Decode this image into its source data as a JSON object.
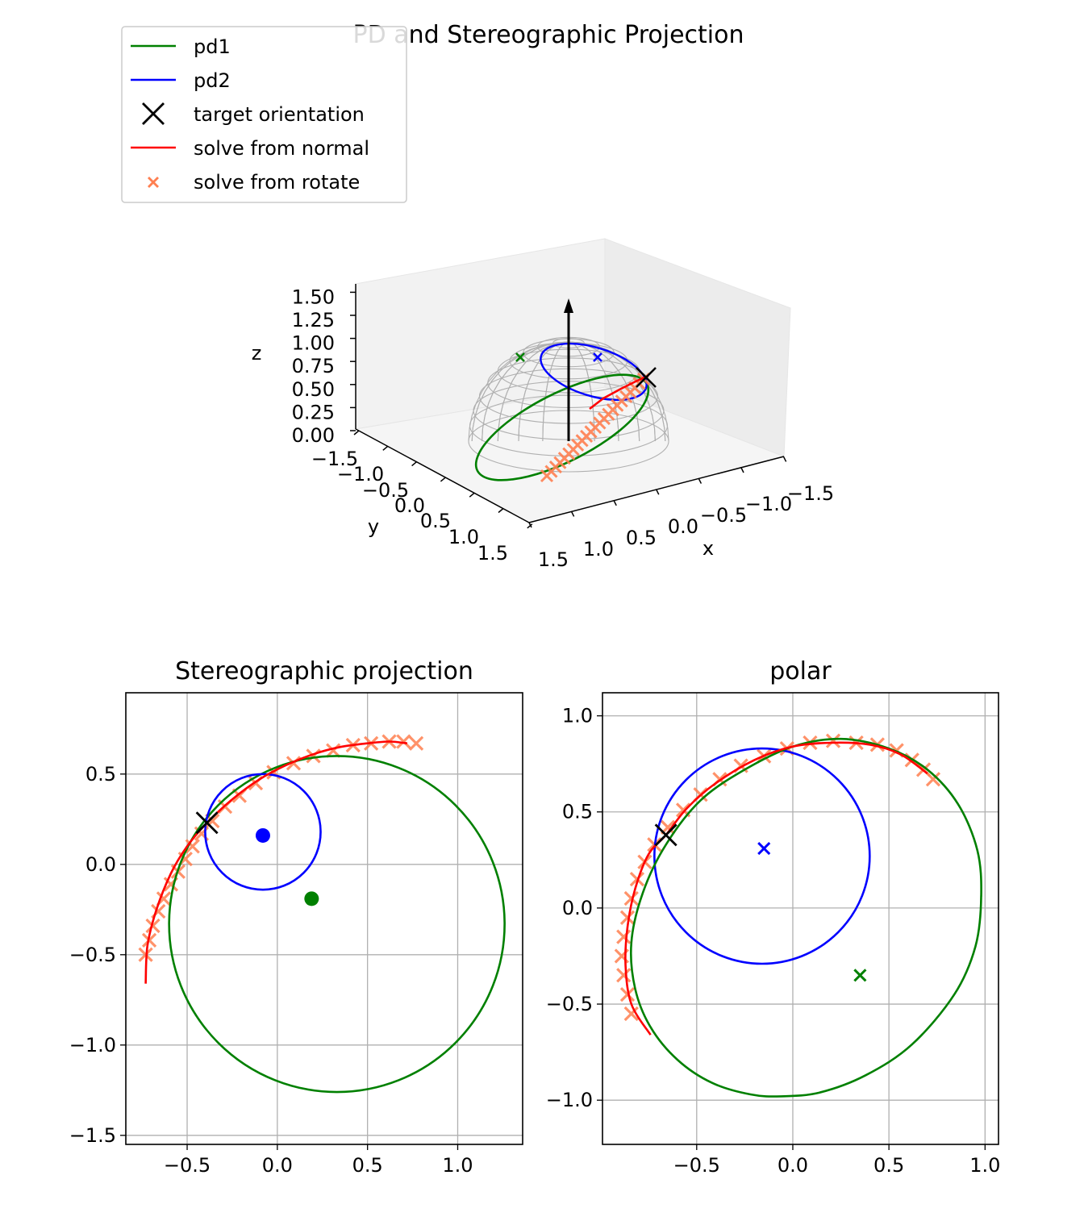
{
  "figure": {
    "title": "PD and Stereographic Projection"
  },
  "legend": {
    "location": "upper-left",
    "entries": [
      {
        "label": "pd1",
        "marker": "line",
        "color": "#008000"
      },
      {
        "label": "pd2",
        "marker": "line",
        "color": "#0000ff"
      },
      {
        "label": "target orientation",
        "marker": "x",
        "color": "#000000"
      },
      {
        "label": "solve from normal",
        "marker": "line",
        "color": "#ff0000"
      },
      {
        "label": "solve from rotate",
        "marker": "x",
        "color": "#ff7f50"
      }
    ]
  },
  "colors": {
    "pd1": "#008000",
    "pd2": "#0000ff",
    "target": "#000000",
    "normal": "#ff0000",
    "rotate": "#ff7f50"
  },
  "chart_data": [
    {
      "type": "line",
      "subtype": "3d",
      "title": "",
      "xlabel": "x",
      "ylabel": "y",
      "zlabel": "z",
      "xlim": [
        -1.5,
        1.5
      ],
      "ylim": [
        -1.5,
        1.5
      ],
      "zlim": [
        0.0,
        1.5
      ],
      "xticks": [
        "1.5",
        "1.0",
        "0.5",
        "0.0",
        "−0.5",
        "−1.0",
        "−1.5"
      ],
      "yticks": [
        "−1.5",
        "−1.0",
        "−0.5",
        "0.0",
        "0.5",
        "1.0",
        "1.5"
      ],
      "zticks": [
        "0.00",
        "0.25",
        "0.50",
        "0.75",
        "1.00",
        "1.25",
        "1.50"
      ],
      "elements": [
        "unit hemisphere wireframe",
        "z-axis arrow",
        "pd1 circle",
        "pd2 circle",
        "pd1 pole",
        "pd2 pole",
        "target orientation",
        "solve from normal",
        "solve from rotate"
      ]
    },
    {
      "type": "line",
      "title": "Stereographic projection",
      "xlim": [
        -0.84,
        1.36
      ],
      "ylim": [
        -1.55,
        0.95
      ],
      "xticks": [
        "−0.5",
        "0.0",
        "0.5",
        "1.0"
      ],
      "yticks": [
        "0.5",
        "0.0",
        "−0.5",
        "−1.0",
        "−1.5"
      ],
      "grid": true,
      "series": [
        {
          "name": "pd1",
          "kind": "circle",
          "center": [
            0.33,
            -0.33
          ],
          "radius": 0.93
        },
        {
          "name": "pd2",
          "kind": "circle",
          "center": [
            -0.08,
            0.18
          ],
          "radius": 0.32
        },
        {
          "name": "pd1",
          "kind": "pole",
          "x": 0.19,
          "y": -0.19
        },
        {
          "name": "pd2",
          "kind": "pole",
          "x": -0.08,
          "y": 0.16
        },
        {
          "name": "target orientation",
          "kind": "point",
          "x": -0.39,
          "y": 0.23
        },
        {
          "name": "solve from normal",
          "kind": "curve",
          "points": [
            [
              -0.73,
              -0.66
            ],
            [
              -0.72,
              -0.45
            ],
            [
              -0.67,
              -0.25
            ],
            [
              -0.59,
              -0.05
            ],
            [
              -0.5,
              0.1
            ],
            [
              -0.39,
              0.23
            ],
            [
              -0.25,
              0.36
            ],
            [
              -0.1,
              0.47
            ],
            [
              0.05,
              0.55
            ],
            [
              0.2,
              0.61
            ],
            [
              0.35,
              0.65
            ],
            [
              0.5,
              0.67
            ],
            [
              0.62,
              0.68
            ],
            [
              0.72,
              0.67
            ]
          ]
        },
        {
          "name": "solve from rotate",
          "kind": "scatter",
          "points": [
            [
              -0.73,
              -0.5
            ],
            [
              -0.71,
              -0.42
            ],
            [
              -0.69,
              -0.34
            ],
            [
              -0.66,
              -0.26
            ],
            [
              -0.63,
              -0.19
            ],
            [
              -0.59,
              -0.11
            ],
            [
              -0.55,
              -0.04
            ],
            [
              -0.51,
              0.03
            ],
            [
              -0.47,
              0.1
            ],
            [
              -0.42,
              0.17
            ],
            [
              -0.36,
              0.24
            ],
            [
              -0.29,
              0.32
            ],
            [
              -0.21,
              0.38
            ],
            [
              -0.12,
              0.45
            ],
            [
              -0.02,
              0.51
            ],
            [
              0.09,
              0.56
            ],
            [
              0.2,
              0.6
            ],
            [
              0.31,
              0.63
            ],
            [
              0.42,
              0.66
            ],
            [
              0.52,
              0.67
            ],
            [
              0.62,
              0.68
            ],
            [
              0.7,
              0.68
            ],
            [
              0.77,
              0.67
            ]
          ]
        }
      ]
    },
    {
      "type": "line",
      "title": "polar",
      "xlim": [
        -0.99,
        1.07
      ],
      "ylim": [
        -1.23,
        1.12
      ],
      "xticks": [
        "−0.5",
        "0.0",
        "0.5",
        "1.0"
      ],
      "yticks": [
        "1.0",
        "0.5",
        "0.0",
        "−0.5",
        "−1.0"
      ],
      "grid": true,
      "series": [
        {
          "name": "pd1",
          "kind": "closed-curve",
          "points": [
            [
              0.98,
              0.06
            ],
            [
              0.96,
              0.3
            ],
            [
              0.86,
              0.54
            ],
            [
              0.7,
              0.72
            ],
            [
              0.5,
              0.83
            ],
            [
              0.25,
              0.88
            ],
            [
              0.0,
              0.84
            ],
            [
              -0.25,
              0.72
            ],
            [
              -0.48,
              0.56
            ],
            [
              -0.66,
              0.33
            ],
            [
              -0.78,
              0.08
            ],
            [
              -0.84,
              -0.18
            ],
            [
              -0.82,
              -0.42
            ],
            [
              -0.74,
              -0.62
            ],
            [
              -0.6,
              -0.79
            ],
            [
              -0.42,
              -0.91
            ],
            [
              -0.22,
              -0.97
            ],
            [
              -0.06,
              -0.98
            ],
            [
              0.14,
              -0.96
            ],
            [
              0.38,
              -0.87
            ],
            [
              0.62,
              -0.71
            ],
            [
              0.84,
              -0.45
            ],
            [
              0.95,
              -0.2
            ]
          ]
        },
        {
          "name": "pd2",
          "kind": "circle",
          "center": [
            -0.16,
            0.27
          ],
          "radius": 0.56
        },
        {
          "name": "pd1",
          "kind": "pole",
          "x": 0.35,
          "y": -0.35
        },
        {
          "name": "pd2",
          "kind": "pole",
          "x": -0.15,
          "y": 0.31
        },
        {
          "name": "target orientation",
          "kind": "point",
          "x": -0.66,
          "y": 0.38
        },
        {
          "name": "solve from normal",
          "kind": "curve",
          "points": [
            [
              -0.74,
              -0.66
            ],
            [
              -0.84,
              -0.5
            ],
            [
              -0.87,
              -0.3
            ],
            [
              -0.86,
              -0.1
            ],
            [
              -0.82,
              0.1
            ],
            [
              -0.75,
              0.28
            ],
            [
              -0.66,
              0.38
            ],
            [
              -0.55,
              0.52
            ],
            [
              -0.4,
              0.65
            ],
            [
              -0.2,
              0.77
            ],
            [
              0.0,
              0.84
            ],
            [
              0.2,
              0.86
            ],
            [
              0.4,
              0.85
            ],
            [
              0.56,
              0.8
            ],
            [
              0.7,
              0.7
            ]
          ]
        },
        {
          "name": "solve from rotate",
          "kind": "scatter",
          "points": [
            [
              -0.84,
              -0.55
            ],
            [
              -0.86,
              -0.45
            ],
            [
              -0.88,
              -0.35
            ],
            [
              -0.89,
              -0.25
            ],
            [
              -0.88,
              -0.15
            ],
            [
              -0.86,
              -0.05
            ],
            [
              -0.84,
              0.05
            ],
            [
              -0.81,
              0.15
            ],
            [
              -0.77,
              0.24
            ],
            [
              -0.72,
              0.33
            ],
            [
              -0.65,
              0.42
            ],
            [
              -0.57,
              0.51
            ],
            [
              -0.48,
              0.59
            ],
            [
              -0.38,
              0.67
            ],
            [
              -0.27,
              0.74
            ],
            [
              -0.15,
              0.79
            ],
            [
              -0.03,
              0.83
            ],
            [
              0.09,
              0.86
            ],
            [
              0.21,
              0.87
            ],
            [
              0.33,
              0.86
            ],
            [
              0.44,
              0.85
            ],
            [
              0.54,
              0.82
            ],
            [
              0.62,
              0.77
            ],
            [
              0.68,
              0.72
            ],
            [
              0.73,
              0.67
            ]
          ]
        }
      ]
    }
  ]
}
